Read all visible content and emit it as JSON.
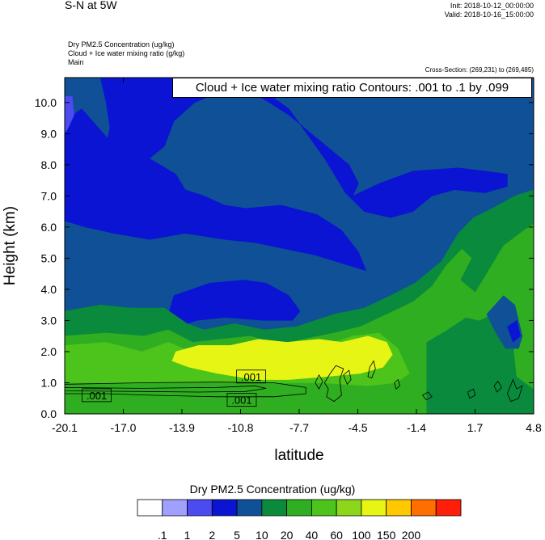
{
  "header": {
    "title": "S-N at 5W",
    "init": "Init: 2018-10-12_00:00:00",
    "valid": "Valid: 2018-10-16_15:00:00",
    "field_lines": [
      "Dry PM2.5 Concentration   (ug/kg)",
      "Cloud + Ice water mixing ratio   (g/kg)",
      "Main"
    ],
    "cross_section": "Cross-Section: (269,231) to (269,485)"
  },
  "chart_data": {
    "type": "heatmap",
    "title": "",
    "xlabel": "latitude",
    "ylabel": "Height (km)",
    "xlim": [
      -20.1,
      4.8
    ],
    "ylim": [
      0.0,
      10.8
    ],
    "x_ticks": [
      "-20.1",
      "-17.0",
      "-13.9",
      "-10.8",
      "-7.7",
      "-4.5",
      "-1.4",
      "1.7",
      "4.8"
    ],
    "y_ticks": [
      "0.0",
      "1.0",
      "2.0",
      "3.0",
      "4.0",
      "5.0",
      "6.0",
      "7.0",
      "8.0",
      "9.0",
      "10.0"
    ],
    "contour_note": "Cloud + Ice water mixing ratio Contours: .001 to .1 by .099",
    "contour_labels": [
      {
        "text": ".001",
        "x": -10.2,
        "y": 1.2
      },
      {
        "text": ".001",
        "x": -18.4,
        "y": 0.6
      },
      {
        "text": ".001",
        "x": -10.7,
        "y": 0.45
      }
    ],
    "colorbar": {
      "title": "Dry PM2.5 Concentration  (ug/kg)",
      "labels": [
        ".1",
        "1",
        "2",
        "5",
        "10",
        "20",
        "40",
        "60",
        "100",
        "150",
        "200"
      ],
      "colors": [
        "#ffffff",
        "#a0a0ff",
        "#4b4bf0",
        "#0a14d2",
        "#0f5096",
        "#0a8a3c",
        "#2fae21",
        "#4cc41b",
        "#8cd61c",
        "#e6f514",
        "#ffc800",
        "#ff6e00",
        "#ff1e0a"
      ]
    },
    "regions": [
      {
        "level": 4,
        "poly": [
          [
            -20.1,
            0
          ],
          [
            4.8,
            0
          ],
          [
            4.8,
            10.8
          ],
          [
            -20.1,
            10.8
          ]
        ]
      },
      {
        "level": 3,
        "poly": [
          [
            -18.2,
            10.8
          ],
          [
            -10.5,
            10.8
          ],
          [
            -8.2,
            9.8
          ],
          [
            -6.3,
            8.2
          ],
          [
            -5.2,
            7.1
          ],
          [
            -4.2,
            6.5
          ],
          [
            -2.8,
            6.3
          ],
          [
            -1.6,
            6.5
          ],
          [
            -0.6,
            7.0
          ],
          [
            0.6,
            7.2
          ],
          [
            2.2,
            7.1
          ],
          [
            3.4,
            7.3
          ],
          [
            3.4,
            7.7
          ],
          [
            2.2,
            7.8
          ],
          [
            0.8,
            7.9
          ],
          [
            -1.6,
            7.8
          ],
          [
            -3.4,
            7.4
          ],
          [
            -4.8,
            7.0
          ],
          [
            -4.5,
            7.4
          ],
          [
            -5.0,
            8.0
          ],
          [
            -6.4,
            8.7
          ],
          [
            -8.2,
            9.6
          ],
          [
            -9.5,
            10.1
          ],
          [
            -11.2,
            10.5
          ],
          [
            -13.2,
            10.0
          ],
          [
            -14.3,
            9.4
          ],
          [
            -14.8,
            8.6
          ],
          [
            -16.0,
            8.0
          ],
          [
            -17.5,
            7.9
          ],
          [
            -18.0,
            8.3
          ],
          [
            -17.7,
            9.2
          ],
          [
            -17.9,
            10.0
          ]
        ]
      },
      {
        "level": 3,
        "poly": [
          [
            -20.1,
            9.4
          ],
          [
            -19.2,
            9.8
          ],
          [
            -17.6,
            8.7
          ],
          [
            -15.6,
            8.2
          ],
          [
            -14.2,
            7.7
          ],
          [
            -13.7,
            7.2
          ],
          [
            -12.7,
            7.0
          ],
          [
            -11.6,
            6.7
          ],
          [
            -10.5,
            6.6
          ],
          [
            -8.6,
            6.7
          ],
          [
            -6.7,
            6.4
          ],
          [
            -5.4,
            5.9
          ],
          [
            -4.5,
            5.2
          ],
          [
            -4.1,
            4.6
          ],
          [
            -5.2,
            4.8
          ],
          [
            -6.8,
            5.1
          ],
          [
            -8.4,
            5.3
          ],
          [
            -10.0,
            5.5
          ],
          [
            -11.6,
            5.6
          ],
          [
            -13.7,
            5.8
          ],
          [
            -15.6,
            5.6
          ],
          [
            -17.5,
            5.8
          ],
          [
            -19.0,
            6.0
          ],
          [
            -20.1,
            6.2
          ]
        ]
      },
      {
        "level": 3,
        "poly": [
          [
            -14.3,
            3.8
          ],
          [
            -12.4,
            4.2
          ],
          [
            -10.6,
            4.3
          ],
          [
            -9.4,
            4.2
          ],
          [
            -8.2,
            3.8
          ],
          [
            -7.6,
            3.3
          ],
          [
            -8.0,
            3.0
          ],
          [
            -9.5,
            3.0
          ],
          [
            -11.6,
            3.1
          ],
          [
            -13.1,
            3.0
          ],
          [
            -14.0,
            2.8
          ],
          [
            -14.6,
            3.2
          ]
        ]
      },
      {
        "level": 2,
        "poly": [
          [
            -20.1,
            10.2
          ],
          [
            -19.7,
            10.2
          ],
          [
            -19.6,
            9.6
          ],
          [
            -19.9,
            9.2
          ],
          [
            -20.1,
            9.0
          ]
        ]
      },
      {
        "level": 5,
        "poly": [
          [
            -20.1,
            3.3
          ],
          [
            -18.2,
            3.5
          ],
          [
            -16.6,
            3.4
          ],
          [
            -14.8,
            3.4
          ],
          [
            -13.6,
            2.9
          ],
          [
            -12.7,
            2.7
          ],
          [
            -11.1,
            2.9
          ],
          [
            -9.5,
            2.7
          ],
          [
            -7.8,
            2.8
          ],
          [
            -5.8,
            3.2
          ],
          [
            -4.2,
            3.4
          ],
          [
            -2.8,
            3.8
          ],
          [
            -1.5,
            4.2
          ],
          [
            -0.1,
            4.9
          ],
          [
            0.8,
            5.8
          ],
          [
            1.6,
            6.3
          ],
          [
            2.6,
            6.6
          ],
          [
            3.8,
            7.0
          ],
          [
            4.8,
            7.2
          ],
          [
            4.8,
            0
          ],
          [
            -20.1,
            0
          ]
        ]
      },
      {
        "level": 6,
        "poly": [
          [
            -20.1,
            2.5
          ],
          [
            -17.9,
            2.6
          ],
          [
            -15.9,
            2.5
          ],
          [
            -14.6,
            2.7
          ],
          [
            -13.3,
            2.3
          ],
          [
            -11.8,
            2.4
          ],
          [
            -10.2,
            2.5
          ],
          [
            -8.9,
            2.2
          ],
          [
            -7.4,
            2.4
          ],
          [
            -5.8,
            2.6
          ],
          [
            -4.4,
            2.8
          ],
          [
            -3.0,
            3.2
          ],
          [
            -1.6,
            3.6
          ],
          [
            -0.6,
            4.1
          ],
          [
            0.2,
            4.8
          ],
          [
            1.0,
            5.3
          ],
          [
            1.5,
            5.0
          ],
          [
            0.9,
            4.3
          ],
          [
            1.7,
            3.9
          ],
          [
            2.3,
            4.5
          ],
          [
            3.2,
            5.4
          ],
          [
            4.3,
            5.9
          ],
          [
            4.8,
            6.1
          ],
          [
            4.8,
            0.8
          ],
          [
            3.9,
            1.2
          ],
          [
            3.5,
            3.5
          ],
          [
            2.6,
            3.2
          ],
          [
            1.9,
            3.0
          ],
          [
            1.2,
            3.1
          ],
          [
            0.2,
            2.7
          ],
          [
            -0.9,
            2.3
          ],
          [
            -0.9,
            0
          ],
          [
            -20.1,
            0
          ]
        ]
      },
      {
        "level": 7,
        "poly": [
          [
            -20.1,
            2.2
          ],
          [
            -17.9,
            2.3
          ],
          [
            -16.0,
            2.0
          ],
          [
            -14.6,
            2.3
          ],
          [
            -13.0,
            1.9
          ],
          [
            -11.4,
            2.0
          ],
          [
            -10.0,
            2.3
          ],
          [
            -8.4,
            2.1
          ],
          [
            -6.3,
            2.2
          ],
          [
            -4.8,
            2.5
          ],
          [
            -3.4,
            2.6
          ],
          [
            -2.4,
            2.1
          ],
          [
            -1.8,
            1.3
          ],
          [
            -2.5,
            1.0
          ],
          [
            -4.0,
            0.9
          ],
          [
            -6.5,
            1.0
          ],
          [
            -9.0,
            1.0
          ],
          [
            -12.0,
            1.0
          ],
          [
            -15.0,
            1.0
          ],
          [
            -18.0,
            1.0
          ],
          [
            -20.1,
            1.0
          ]
        ]
      },
      {
        "level": 9,
        "poly": [
          [
            -14.2,
            2.0
          ],
          [
            -13.0,
            2.2
          ],
          [
            -11.3,
            2.2
          ],
          [
            -9.8,
            2.4
          ],
          [
            -8.3,
            2.3
          ],
          [
            -6.6,
            2.4
          ],
          [
            -5.4,
            2.3
          ],
          [
            -4.0,
            2.5
          ],
          [
            -3.0,
            2.3
          ],
          [
            -2.7,
            1.9
          ],
          [
            -3.2,
            1.5
          ],
          [
            -4.4,
            1.3
          ],
          [
            -6.2,
            1.2
          ],
          [
            -8.2,
            1.1
          ],
          [
            -10.0,
            1.1
          ],
          [
            -12.0,
            1.3
          ],
          [
            -13.5,
            1.5
          ],
          [
            -14.4,
            1.7
          ]
        ]
      },
      {
        "level": 4,
        "poly": [
          [
            2.3,
            3.2
          ],
          [
            3.2,
            3.8
          ],
          [
            3.8,
            3.5
          ],
          [
            4.2,
            2.5
          ],
          [
            4.0,
            2.1
          ],
          [
            3.3,
            2.1
          ],
          [
            2.8,
            2.6
          ]
        ]
      },
      {
        "level": 3,
        "poly": [
          [
            3.4,
            2.8
          ],
          [
            3.9,
            3.0
          ],
          [
            4.1,
            2.5
          ],
          [
            3.7,
            2.3
          ]
        ]
      }
    ],
    "contours": [
      [
        [
          -20.1,
          0.95
        ],
        [
          -16.0,
          1.0
        ],
        [
          -12.0,
          1.02
        ],
        [
          -9.0,
          1.0
        ],
        [
          -7.3,
          0.85
        ],
        [
          -7.3,
          0.65
        ],
        [
          -9.0,
          0.55
        ],
        [
          -12.0,
          0.55
        ],
        [
          -15.5,
          0.6
        ],
        [
          -18.0,
          0.65
        ],
        [
          -20.1,
          0.65
        ]
      ],
      [
        [
          -20.1,
          0.85
        ],
        [
          -16.0,
          0.82
        ],
        [
          -12.0,
          0.85
        ],
        [
          -10.0,
          0.9
        ],
        [
          -9.4,
          0.82
        ],
        [
          -10.5,
          0.72
        ],
        [
          -13.0,
          0.7
        ],
        [
          -16.0,
          0.72
        ],
        [
          -20.1,
          0.74
        ]
      ],
      [
        [
          -6.3,
          1.0
        ],
        [
          -6.0,
          1.3
        ],
        [
          -5.7,
          1.55
        ],
        [
          -5.3,
          1.45
        ],
        [
          -5.5,
          1.1
        ],
        [
          -5.4,
          0.6
        ],
        [
          -5.8,
          0.4
        ],
        [
          -6.2,
          0.55
        ],
        [
          -6.1,
          0.8
        ]
      ],
      [
        [
          -5.3,
          1.25
        ],
        [
          -5.0,
          1.4
        ],
        [
          -4.9,
          1.1
        ],
        [
          -5.1,
          0.95
        ]
      ],
      [
        [
          -6.8,
          1.0
        ],
        [
          -6.6,
          1.25
        ],
        [
          -6.4,
          1.05
        ],
        [
          -6.6,
          0.8
        ]
      ],
      [
        [
          -3.9,
          1.5
        ],
        [
          -3.7,
          1.7
        ],
        [
          -3.6,
          1.45
        ],
        [
          -3.8,
          1.15
        ],
        [
          -4.0,
          1.2
        ]
      ],
      [
        [
          -2.6,
          1.0
        ],
        [
          -2.4,
          1.1
        ],
        [
          -2.3,
          0.9
        ],
        [
          -2.5,
          0.8
        ]
      ],
      [
        [
          -1.1,
          0.6
        ],
        [
          -0.8,
          0.7
        ],
        [
          -0.6,
          0.55
        ],
        [
          -0.9,
          0.45
        ]
      ],
      [
        [
          1.3,
          0.7
        ],
        [
          1.6,
          0.8
        ],
        [
          1.7,
          0.6
        ],
        [
          1.4,
          0.5
        ]
      ],
      [
        [
          3.4,
          0.65
        ],
        [
          3.7,
          1.1
        ],
        [
          3.9,
          0.8
        ],
        [
          4.2,
          0.9
        ],
        [
          4.0,
          0.5
        ],
        [
          3.6,
          0.4
        ]
      ],
      [
        [
          2.7,
          0.9
        ],
        [
          2.9,
          1.05
        ],
        [
          3.1,
          0.85
        ],
        [
          2.85,
          0.7
        ]
      ]
    ]
  }
}
